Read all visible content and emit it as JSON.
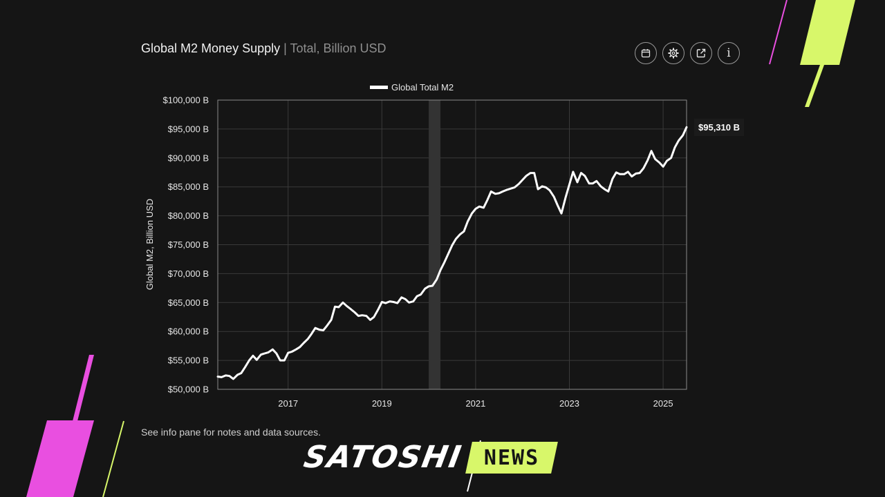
{
  "header": {
    "title": "Global M2 Money Supply",
    "subtitle": "| Total, Billion USD"
  },
  "toolbar": {
    "buttons": [
      {
        "icon": "calendar-icon"
      },
      {
        "icon": "gear-icon"
      },
      {
        "icon": "external-link-icon"
      },
      {
        "icon": "info-icon",
        "label": "i"
      }
    ]
  },
  "chart_data": {
    "type": "line",
    "title": "",
    "ylabel": "Global M2, Billion USD",
    "xlabel": "",
    "ylim": [
      50000,
      100000
    ],
    "xlim": [
      2015.5,
      2025.5
    ],
    "y_ticks": [
      "$50,000 B",
      "$55,000 B",
      "$60,000 B",
      "$65,000 B",
      "$70,000 B",
      "$75,000 B",
      "$80,000 B",
      "$85,000 B",
      "$90,000 B",
      "$95,000 B",
      "$100,000 B"
    ],
    "x_ticks": [
      "2017",
      "2019",
      "2021",
      "2023",
      "2025"
    ],
    "grid": true,
    "legend": "top-center",
    "shaded_region": [
      2020.0,
      2020.25
    ],
    "last_value_label": "$95,310 B",
    "series": [
      {
        "name": "Global Total M2",
        "color": "#ffffff",
        "x": [
          2015.5,
          2015.58,
          2015.67,
          2015.75,
          2015.83,
          2015.92,
          2016.0,
          2016.08,
          2016.17,
          2016.25,
          2016.33,
          2016.42,
          2016.5,
          2016.58,
          2016.67,
          2016.75,
          2016.83,
          2016.92,
          2017.0,
          2017.08,
          2017.17,
          2017.25,
          2017.33,
          2017.42,
          2017.5,
          2017.58,
          2017.67,
          2017.75,
          2017.83,
          2017.92,
          2018.0,
          2018.08,
          2018.17,
          2018.25,
          2018.33,
          2018.42,
          2018.5,
          2018.58,
          2018.67,
          2018.75,
          2018.83,
          2018.92,
          2019.0,
          2019.08,
          2019.17,
          2019.25,
          2019.33,
          2019.42,
          2019.5,
          2019.58,
          2019.67,
          2019.75,
          2019.83,
          2019.92,
          2020.0,
          2020.08,
          2020.17,
          2020.25,
          2020.33,
          2020.42,
          2020.5,
          2020.58,
          2020.67,
          2020.75,
          2020.83,
          2020.92,
          2021.0,
          2021.08,
          2021.17,
          2021.25,
          2021.33,
          2021.42,
          2021.5,
          2021.58,
          2021.67,
          2021.75,
          2021.83,
          2021.92,
          2022.0,
          2022.08,
          2022.17,
          2022.25,
          2022.33,
          2022.42,
          2022.5,
          2022.58,
          2022.67,
          2022.75,
          2022.83,
          2022.92,
          2023.0,
          2023.08,
          2023.17,
          2023.25,
          2023.33,
          2023.42,
          2023.5,
          2023.58,
          2023.67,
          2023.75,
          2023.83,
          2023.92,
          2024.0,
          2024.08,
          2024.17,
          2024.25,
          2024.33,
          2024.42,
          2024.5,
          2024.58,
          2024.67,
          2024.75,
          2024.83,
          2024.92,
          2025.0,
          2025.08,
          2025.17,
          2025.25,
          2025.33,
          2025.42,
          2025.5
        ],
        "y": [
          52200,
          52100,
          52400,
          52300,
          51800,
          52500,
          52800,
          53800,
          55000,
          55800,
          55100,
          56000,
          56200,
          56400,
          56900,
          56200,
          55000,
          55000,
          56300,
          56500,
          56900,
          57300,
          58000,
          58700,
          59600,
          60600,
          60300,
          60200,
          61000,
          62000,
          64300,
          64200,
          65000,
          64400,
          63900,
          63300,
          62700,
          62800,
          62700,
          62000,
          62500,
          63800,
          65100,
          64900,
          65200,
          65100,
          64900,
          65900,
          65600,
          65000,
          65200,
          66100,
          66400,
          67400,
          67800,
          67900,
          69000,
          70600,
          71900,
          73500,
          74900,
          76000,
          76800,
          77300,
          79000,
          80400,
          81200,
          81600,
          81400,
          82700,
          84200,
          83800,
          83900,
          84200,
          84500,
          84700,
          84900,
          85500,
          86200,
          86900,
          87400,
          87400,
          84600,
          85100,
          84900,
          84400,
          83300,
          81800,
          80400,
          83200,
          85400,
          87600,
          85800,
          87400,
          86900,
          85600,
          85600,
          86000,
          85100,
          84600,
          84200,
          86400,
          87500,
          87200,
          87200,
          87600,
          86800,
          87300,
          87400,
          88200,
          89600,
          91200,
          89800,
          89200,
          88500,
          89500,
          90000,
          91800,
          93000,
          93900,
          95310
        ]
      }
    ]
  },
  "footnote": "See info pane for notes and data sources.",
  "brand": {
    "left": "SATOSHI",
    "right": "NEWS",
    "accent_color": "#d8f76a",
    "magenta_color": "#e94fe0"
  }
}
